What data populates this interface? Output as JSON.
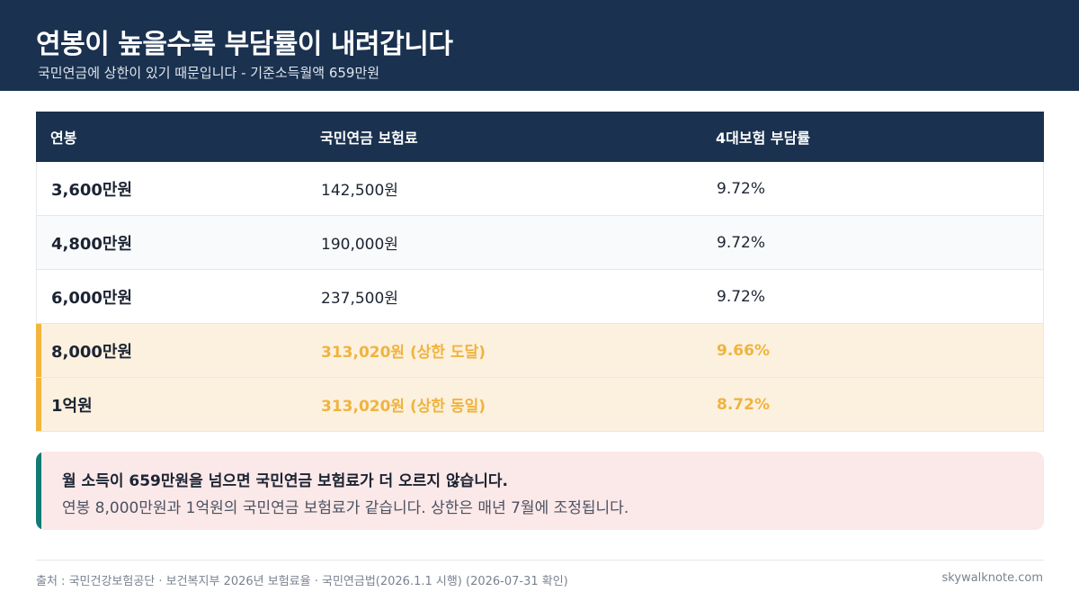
{
  "header": {
    "title": "연봉이 높을수록 부담률이 내려갑니다",
    "subtitle": "국민연금에 상한이 있기 때문입니다 - 기준소득월액 659만원"
  },
  "table": {
    "headers": [
      "연봉",
      "국민연금 보험료",
      "4대보험 부담률"
    ],
    "rows": [
      {
        "salary": "3,600만원",
        "pension": "142,500원",
        "rate": "9.72%"
      },
      {
        "salary": "4,800만원",
        "pension": "190,000원",
        "rate": "9.72%"
      },
      {
        "salary": "6,000만원",
        "pension": "237,500원",
        "rate": "9.72%"
      },
      {
        "salary": "8,000만원",
        "pension": "313,020원 (상한 도달)",
        "rate": "9.66%"
      },
      {
        "salary": "1억원",
        "pension": "313,020원 (상한 동일)",
        "rate": "8.72%"
      }
    ]
  },
  "note": {
    "strong": "월 소득이 659만원을 넘으면 국민연금 보험료가 더 오르지 않습니다.",
    "text": "연봉 8,000만원과 1억원의 국민연금 보험료가 같습니다. 상한은 매년 7월에 조정됩니다."
  },
  "footer": {
    "source": "출처 : 국민건강보험공단 · 보건복지부 2026년 보험료율 · 국민연금법(2026.1.1 시행) (2026-07-31 확인)",
    "site": "skywalknote.com"
  },
  "colors": {
    "header_bg": "#1a314f",
    "highlight_bg": "#fcf1df",
    "highlight_accent": "#f4b53d",
    "highlight_text": "#f0b33f",
    "note_bg": "#fbe8e8",
    "note_accent": "#0f7b74"
  }
}
